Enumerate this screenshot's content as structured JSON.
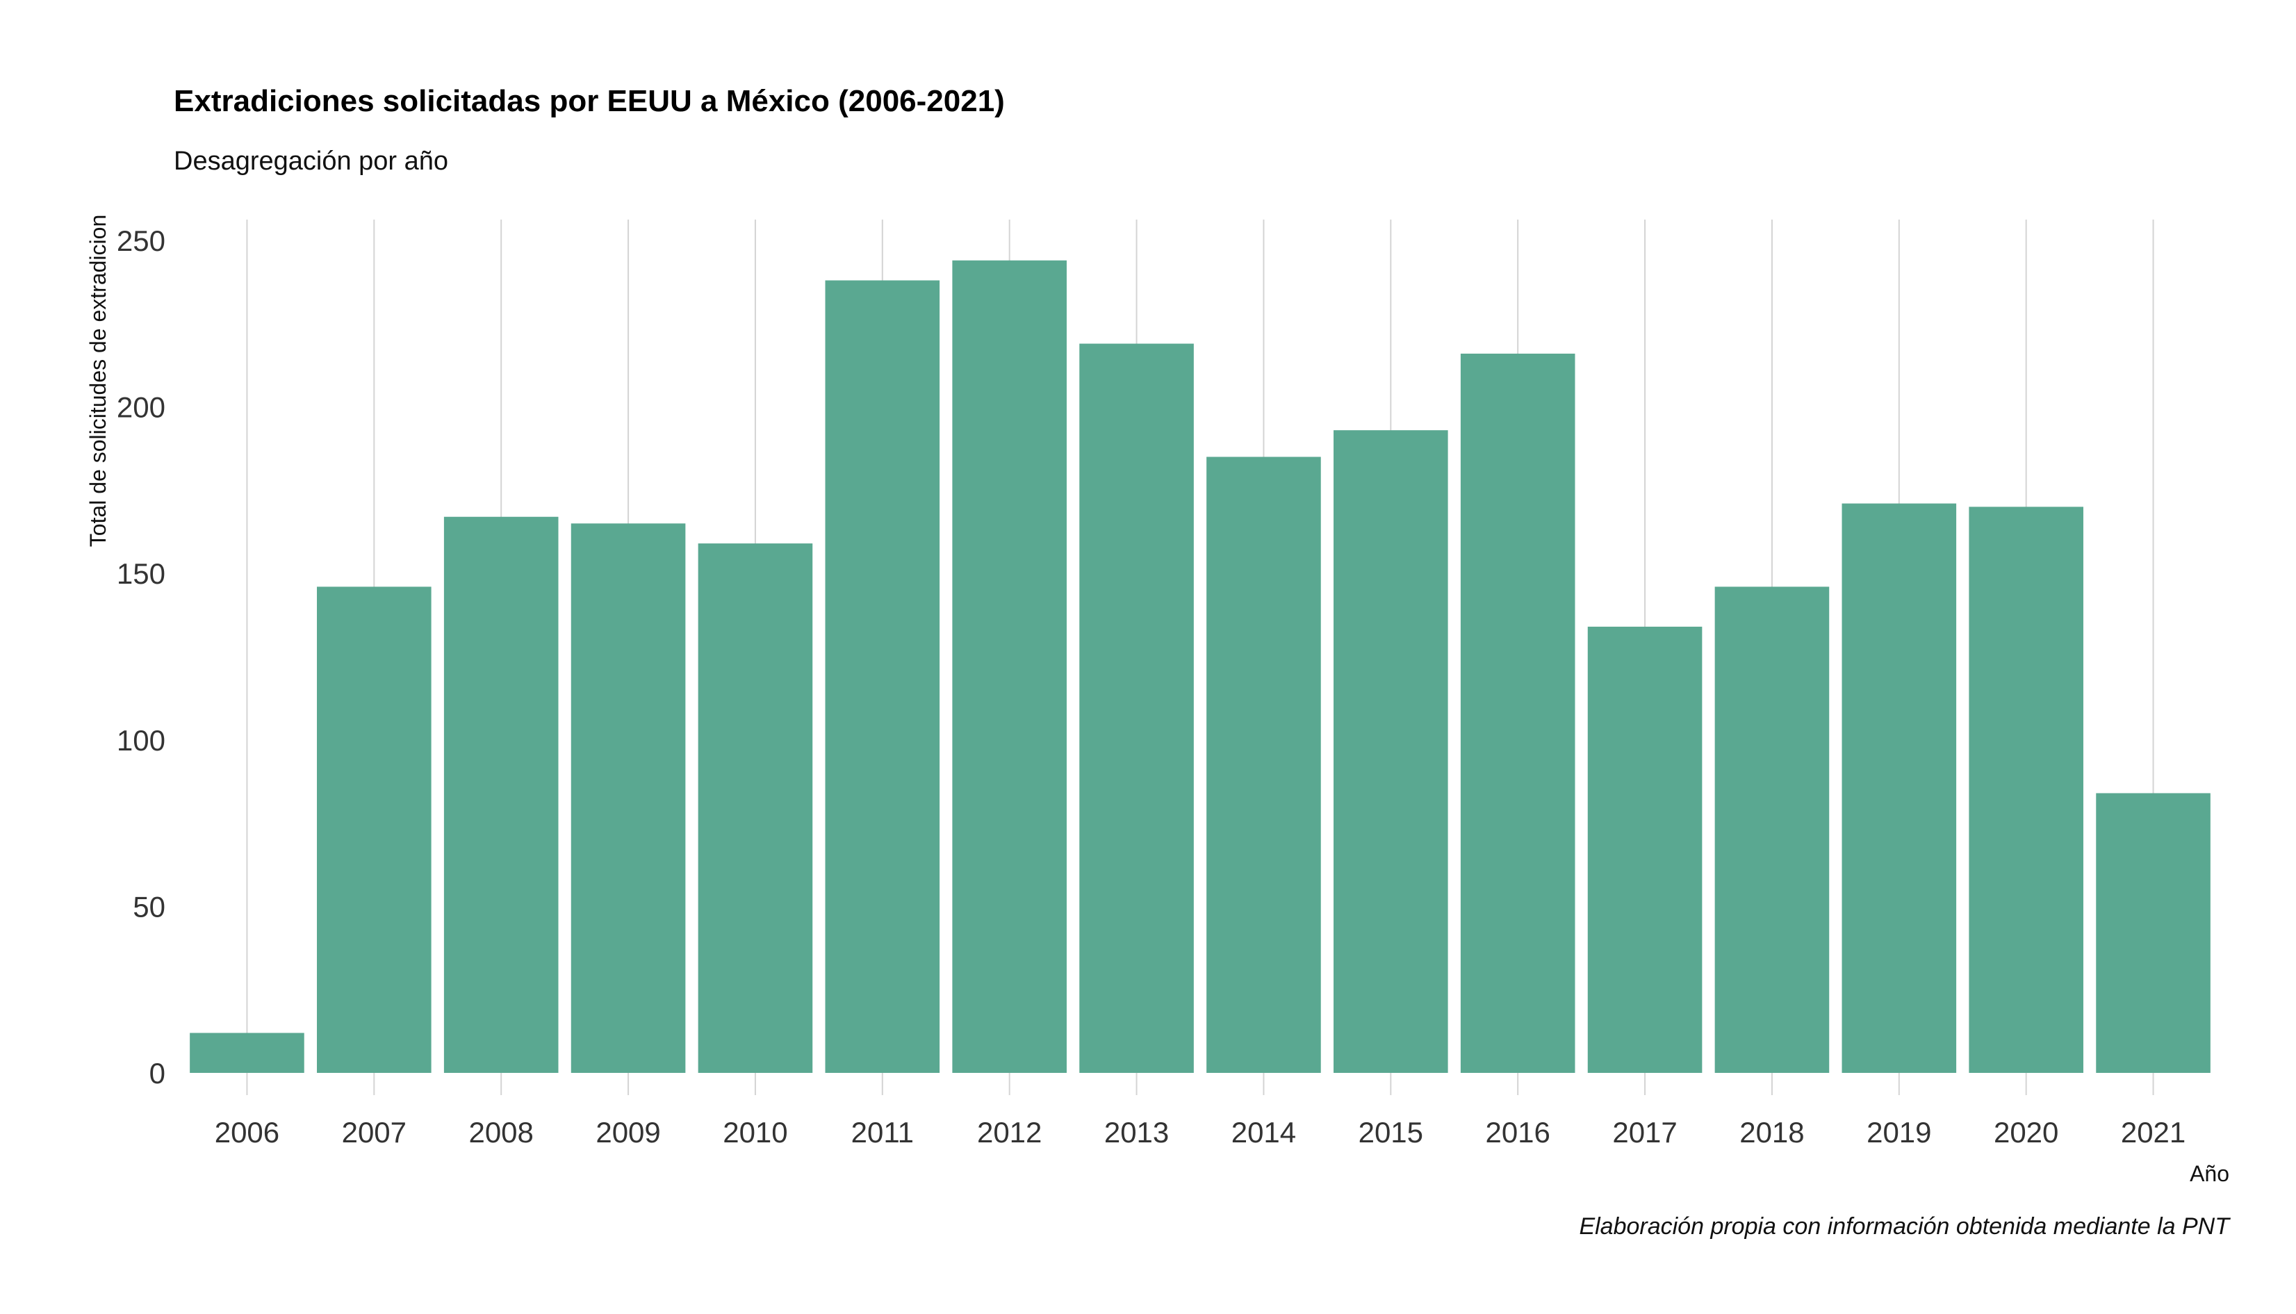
{
  "colors": {
    "bar": "#5aa891",
    "grid": "#d4d4d4",
    "background": "#ffffff"
  },
  "chart_data": {
    "type": "bar",
    "title": "Extradiciones solicitadas por EEUU a México (2006-2021)",
    "subtitle": "Desagregación por año",
    "xlabel": "Año",
    "ylabel": "Total de solicitudes de extradicion",
    "caption": "Elaboración propia con información obtenida mediante la PNT",
    "categories": [
      "2006",
      "2007",
      "2008",
      "2009",
      "2010",
      "2011",
      "2012",
      "2013",
      "2014",
      "2015",
      "2016",
      "2017",
      "2018",
      "2019",
      "2020",
      "2021"
    ],
    "values": [
      12,
      146,
      167,
      165,
      159,
      238,
      244,
      219,
      185,
      193,
      216,
      134,
      146,
      171,
      170,
      84
    ],
    "yticks": [
      0,
      50,
      100,
      150,
      200,
      250
    ],
    "ylim": [
      0,
      250
    ],
    "grid": "vertical",
    "legend": "none"
  }
}
